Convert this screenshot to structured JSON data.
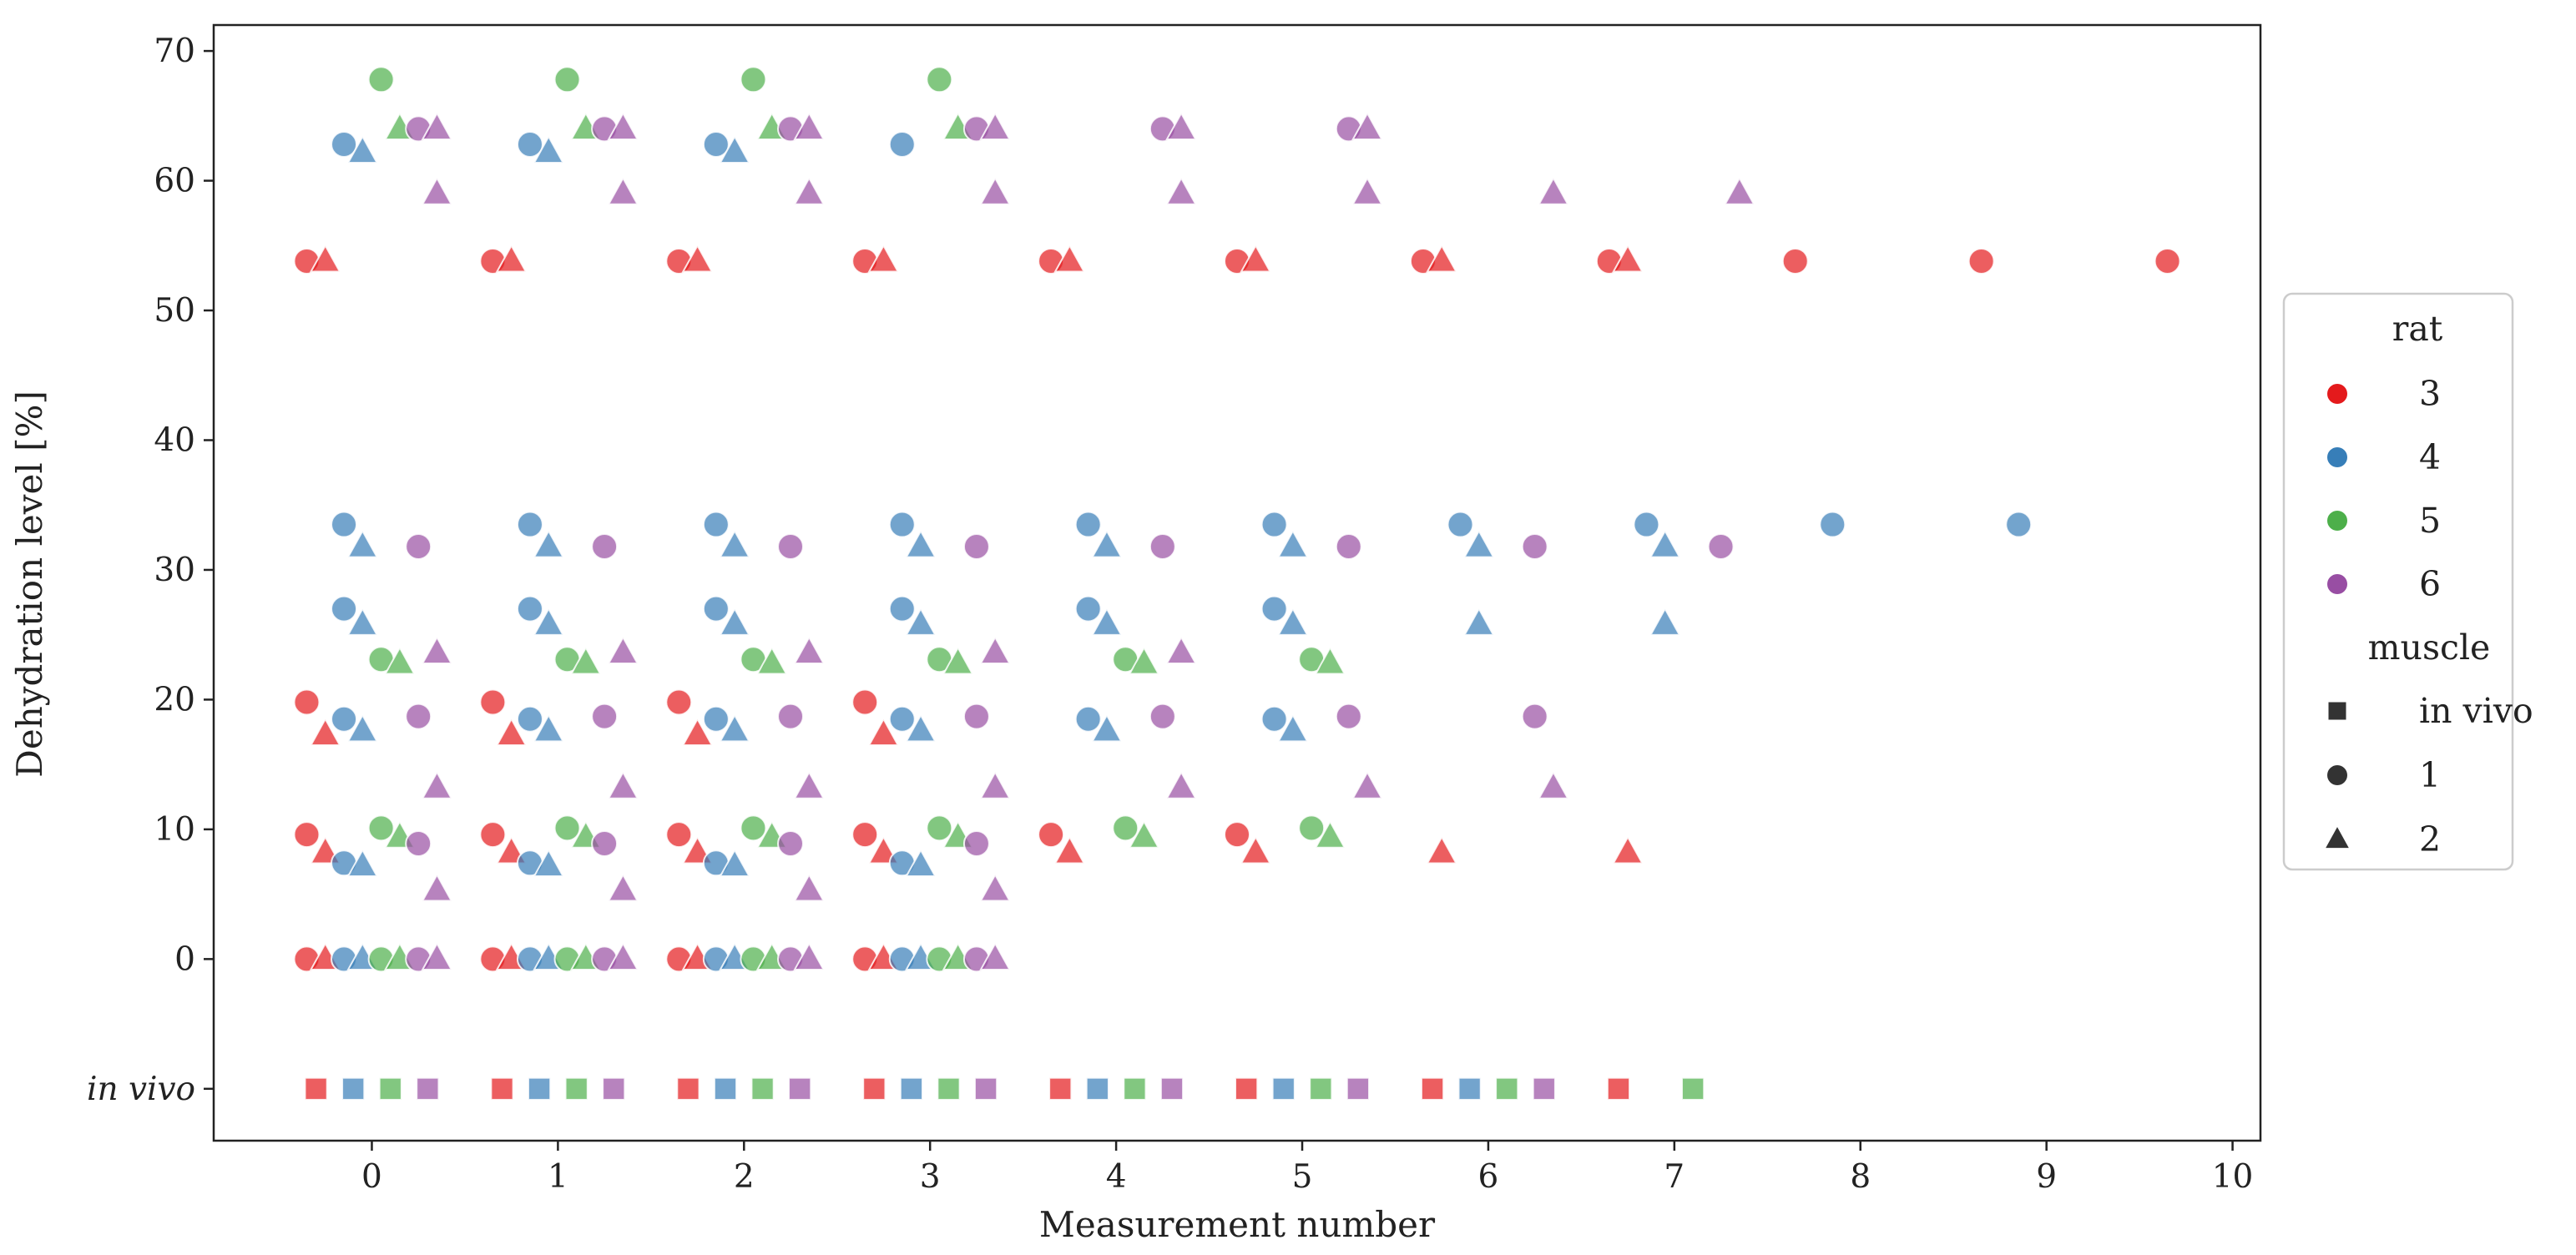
{
  "chart_data": {
    "type": "scatter",
    "xlabel": "Measurement number",
    "ylabel": "Dehydration level [%]",
    "xlim": [
      -0.85,
      10.15
    ],
    "ylim": [
      -14.0,
      72.0
    ],
    "x_ticks": [
      0,
      1,
      2,
      3,
      4,
      5,
      6,
      7,
      8,
      9,
      10
    ],
    "y_ticks": [
      {
        "value": 0,
        "label": "0"
      },
      {
        "value": 10,
        "label": "10"
      },
      {
        "value": 20,
        "label": "20"
      },
      {
        "value": 30,
        "label": "30"
      },
      {
        "value": 40,
        "label": "40"
      },
      {
        "value": 50,
        "label": "50"
      },
      {
        "value": 60,
        "label": "60"
      },
      {
        "value": 70,
        "label": "70"
      },
      {
        "value": -10,
        "label": "in vivo",
        "italic": true
      }
    ],
    "grid": false,
    "legend": {
      "placement": "right",
      "hue_title": "rat",
      "style_title": "muscle",
      "hue_entries": [
        {
          "label": "3",
          "color": "#e41a1c"
        },
        {
          "label": "4",
          "color": "#377eb8"
        },
        {
          "label": "5",
          "color": "#4daf4a"
        },
        {
          "label": "6",
          "color": "#984ea3"
        }
      ],
      "style_entries": [
        {
          "label": "in vivo",
          "marker": "square"
        },
        {
          "label": "1",
          "marker": "circle"
        },
        {
          "label": "2",
          "marker": "triangle"
        }
      ]
    },
    "marker_alpha": 0.7,
    "series": [
      {
        "rat": "3",
        "muscle": "in vivo",
        "color": "#e41a1c",
        "marker": "square",
        "points": [
          [
            -0.3,
            -10
          ],
          [
            0.7,
            -10
          ],
          [
            1.7,
            -10
          ],
          [
            2.7,
            -10
          ],
          [
            3.7,
            -10
          ],
          [
            4.7,
            -10
          ],
          [
            5.7,
            -10
          ],
          [
            6.7,
            -10
          ]
        ]
      },
      {
        "rat": "4",
        "muscle": "in vivo",
        "color": "#377eb8",
        "marker": "square",
        "points": [
          [
            -0.1,
            -10
          ],
          [
            0.9,
            -10
          ],
          [
            1.9,
            -10
          ],
          [
            2.9,
            -10
          ],
          [
            3.9,
            -10
          ],
          [
            4.9,
            -10
          ],
          [
            5.9,
            -10
          ]
        ]
      },
      {
        "rat": "5",
        "muscle": "in vivo",
        "color": "#4daf4a",
        "marker": "square",
        "points": [
          [
            0.1,
            -10
          ],
          [
            1.1,
            -10
          ],
          [
            2.1,
            -10
          ],
          [
            3.1,
            -10
          ],
          [
            4.1,
            -10
          ],
          [
            5.1,
            -10
          ],
          [
            6.1,
            -10
          ],
          [
            7.1,
            -10
          ]
        ]
      },
      {
        "rat": "6",
        "muscle": "in vivo",
        "color": "#984ea3",
        "marker": "square",
        "points": [
          [
            0.3,
            -10
          ],
          [
            1.3,
            -10
          ],
          [
            2.3,
            -10
          ],
          [
            3.3,
            -10
          ],
          [
            4.3,
            -10
          ],
          [
            5.3,
            -10
          ],
          [
            6.3,
            -10
          ]
        ]
      },
      {
        "rat": "3",
        "muscle": "1",
        "color": "#e41a1c",
        "marker": "circle",
        "points": [
          [
            -0.35,
            0
          ],
          [
            0.65,
            0
          ],
          [
            1.65,
            0
          ],
          [
            2.65,
            0
          ],
          [
            -0.35,
            9.6
          ],
          [
            0.65,
            9.6
          ],
          [
            1.65,
            9.6
          ],
          [
            2.65,
            9.6
          ],
          [
            3.65,
            9.6
          ],
          [
            4.65,
            9.6
          ],
          [
            -0.35,
            19.8
          ],
          [
            0.65,
            19.8
          ],
          [
            1.65,
            19.8
          ],
          [
            2.65,
            19.8
          ],
          [
            -0.35,
            53.8
          ],
          [
            0.65,
            53.8
          ],
          [
            1.65,
            53.8
          ],
          [
            2.65,
            53.8
          ],
          [
            3.65,
            53.8
          ],
          [
            4.65,
            53.8
          ],
          [
            5.65,
            53.8
          ],
          [
            6.65,
            53.8
          ],
          [
            7.65,
            53.8
          ],
          [
            8.65,
            53.8
          ],
          [
            9.65,
            53.8
          ]
        ]
      },
      {
        "rat": "3",
        "muscle": "2",
        "color": "#e41a1c",
        "marker": "triangle",
        "points": [
          [
            -0.25,
            0
          ],
          [
            0.75,
            0
          ],
          [
            1.75,
            0
          ],
          [
            2.75,
            0
          ],
          [
            -0.25,
            8.2
          ],
          [
            0.75,
            8.2
          ],
          [
            1.75,
            8.2
          ],
          [
            2.75,
            8.2
          ],
          [
            3.75,
            8.2
          ],
          [
            4.75,
            8.2
          ],
          [
            5.75,
            8.2
          ],
          [
            6.75,
            8.2
          ],
          [
            -0.25,
            17.3
          ],
          [
            0.75,
            17.3
          ],
          [
            1.75,
            17.3
          ],
          [
            2.75,
            17.3
          ],
          [
            -0.25,
            53.8
          ],
          [
            0.75,
            53.8
          ],
          [
            1.75,
            53.8
          ],
          [
            2.75,
            53.8
          ],
          [
            3.75,
            53.8
          ],
          [
            4.75,
            53.8
          ],
          [
            5.75,
            53.8
          ],
          [
            6.75,
            53.8
          ]
        ]
      },
      {
        "rat": "4",
        "muscle": "1",
        "color": "#377eb8",
        "marker": "circle",
        "points": [
          [
            -0.15,
            0
          ],
          [
            0.85,
            0
          ],
          [
            1.85,
            0
          ],
          [
            2.85,
            0
          ],
          [
            -0.15,
            7.4
          ],
          [
            0.85,
            7.4
          ],
          [
            1.85,
            7.4
          ],
          [
            2.85,
            7.4
          ],
          [
            -0.15,
            18.5
          ],
          [
            0.85,
            18.5
          ],
          [
            1.85,
            18.5
          ],
          [
            2.85,
            18.5
          ],
          [
            3.85,
            18.5
          ],
          [
            4.85,
            18.5
          ],
          [
            -0.15,
            27.0
          ],
          [
            0.85,
            27.0
          ],
          [
            1.85,
            27.0
          ],
          [
            2.85,
            27.0
          ],
          [
            3.85,
            27.0
          ],
          [
            4.85,
            27.0
          ],
          [
            -0.15,
            33.5
          ],
          [
            0.85,
            33.5
          ],
          [
            1.85,
            33.5
          ],
          [
            2.85,
            33.5
          ],
          [
            3.85,
            33.5
          ],
          [
            4.85,
            33.5
          ],
          [
            5.85,
            33.5
          ],
          [
            6.85,
            33.5
          ],
          [
            7.85,
            33.5
          ],
          [
            8.85,
            33.5
          ],
          [
            -0.15,
            62.8
          ],
          [
            0.85,
            62.8
          ],
          [
            1.85,
            62.8
          ],
          [
            2.85,
            62.8
          ]
        ]
      },
      {
        "rat": "4",
        "muscle": "2",
        "color": "#377eb8",
        "marker": "triangle",
        "points": [
          [
            -0.05,
            0
          ],
          [
            0.95,
            0
          ],
          [
            1.95,
            0
          ],
          [
            2.95,
            0
          ],
          [
            -0.05,
            7.2
          ],
          [
            0.95,
            7.2
          ],
          [
            1.95,
            7.2
          ],
          [
            2.95,
            7.2
          ],
          [
            -0.05,
            17.6
          ],
          [
            0.95,
            17.6
          ],
          [
            1.95,
            17.6
          ],
          [
            2.95,
            17.6
          ],
          [
            3.95,
            17.6
          ],
          [
            4.95,
            17.6
          ],
          [
            -0.05,
            25.8
          ],
          [
            0.95,
            25.8
          ],
          [
            1.95,
            25.8
          ],
          [
            2.95,
            25.8
          ],
          [
            3.95,
            25.8
          ],
          [
            4.95,
            25.8
          ],
          [
            5.95,
            25.8
          ],
          [
            6.95,
            25.8
          ],
          [
            -0.05,
            31.8
          ],
          [
            0.95,
            31.8
          ],
          [
            1.95,
            31.8
          ],
          [
            2.95,
            31.8
          ],
          [
            3.95,
            31.8
          ],
          [
            4.95,
            31.8
          ],
          [
            5.95,
            31.8
          ],
          [
            6.95,
            31.8
          ],
          [
            -0.05,
            62.2
          ],
          [
            0.95,
            62.2
          ],
          [
            1.95,
            62.2
          ]
        ]
      },
      {
        "rat": "5",
        "muscle": "1",
        "color": "#4daf4a",
        "marker": "circle",
        "points": [
          [
            0.05,
            0
          ],
          [
            1.05,
            0
          ],
          [
            2.05,
            0
          ],
          [
            3.05,
            0
          ],
          [
            0.05,
            10.1
          ],
          [
            1.05,
            10.1
          ],
          [
            2.05,
            10.1
          ],
          [
            3.05,
            10.1
          ],
          [
            4.05,
            10.1
          ],
          [
            5.05,
            10.1
          ],
          [
            0.05,
            23.1
          ],
          [
            1.05,
            23.1
          ],
          [
            2.05,
            23.1
          ],
          [
            3.05,
            23.1
          ],
          [
            4.05,
            23.1
          ],
          [
            5.05,
            23.1
          ],
          [
            0.05,
            67.8
          ],
          [
            1.05,
            67.8
          ],
          [
            2.05,
            67.8
          ],
          [
            3.05,
            67.8
          ]
        ]
      },
      {
        "rat": "5",
        "muscle": "2",
        "color": "#4daf4a",
        "marker": "triangle",
        "points": [
          [
            0.15,
            0
          ],
          [
            1.15,
            0
          ],
          [
            2.15,
            0
          ],
          [
            3.15,
            0
          ],
          [
            0.15,
            9.4
          ],
          [
            1.15,
            9.4
          ],
          [
            2.15,
            9.4
          ],
          [
            3.15,
            9.4
          ],
          [
            4.15,
            9.4
          ],
          [
            5.15,
            9.4
          ],
          [
            0.15,
            22.8
          ],
          [
            1.15,
            22.8
          ],
          [
            2.15,
            22.8
          ],
          [
            3.15,
            22.8
          ],
          [
            4.15,
            22.8
          ],
          [
            5.15,
            22.8
          ],
          [
            0.15,
            64.0
          ],
          [
            1.15,
            64.0
          ],
          [
            2.15,
            64.0
          ],
          [
            3.15,
            64.0
          ]
        ]
      },
      {
        "rat": "6",
        "muscle": "1",
        "color": "#984ea3",
        "marker": "circle",
        "points": [
          [
            0.25,
            0
          ],
          [
            1.25,
            0
          ],
          [
            2.25,
            0
          ],
          [
            3.25,
            0
          ],
          [
            0.25,
            8.9
          ],
          [
            1.25,
            8.9
          ],
          [
            2.25,
            8.9
          ],
          [
            3.25,
            8.9
          ],
          [
            0.25,
            18.7
          ],
          [
            1.25,
            18.7
          ],
          [
            2.25,
            18.7
          ],
          [
            3.25,
            18.7
          ],
          [
            4.25,
            18.7
          ],
          [
            5.25,
            18.7
          ],
          [
            6.25,
            18.7
          ],
          [
            0.25,
            31.8
          ],
          [
            1.25,
            31.8
          ],
          [
            2.25,
            31.8
          ],
          [
            3.25,
            31.8
          ],
          [
            4.25,
            31.8
          ],
          [
            5.25,
            31.8
          ],
          [
            6.25,
            31.8
          ],
          [
            7.25,
            31.8
          ],
          [
            0.25,
            64.0
          ],
          [
            1.25,
            64.0
          ],
          [
            2.25,
            64.0
          ],
          [
            3.25,
            64.0
          ],
          [
            4.25,
            64.0
          ],
          [
            5.25,
            64.0
          ]
        ]
      },
      {
        "rat": "6",
        "muscle": "2",
        "color": "#984ea3",
        "marker": "triangle",
        "points": [
          [
            0.35,
            0
          ],
          [
            1.35,
            0
          ],
          [
            2.35,
            0
          ],
          [
            3.35,
            0
          ],
          [
            0.35,
            5.3
          ],
          [
            1.35,
            5.3
          ],
          [
            2.35,
            5.3
          ],
          [
            3.35,
            5.3
          ],
          [
            0.35,
            13.2
          ],
          [
            1.35,
            13.2
          ],
          [
            2.35,
            13.2
          ],
          [
            3.35,
            13.2
          ],
          [
            4.35,
            13.2
          ],
          [
            5.35,
            13.2
          ],
          [
            6.35,
            13.2
          ],
          [
            0.35,
            23.6
          ],
          [
            1.35,
            23.6
          ],
          [
            2.35,
            23.6
          ],
          [
            3.35,
            23.6
          ],
          [
            4.35,
            23.6
          ],
          [
            0.35,
            59.0
          ],
          [
            1.35,
            59.0
          ],
          [
            2.35,
            59.0
          ],
          [
            3.35,
            59.0
          ],
          [
            4.35,
            59.0
          ],
          [
            5.35,
            59.0
          ],
          [
            6.35,
            59.0
          ],
          [
            7.35,
            59.0
          ],
          [
            0.35,
            64.0
          ],
          [
            1.35,
            64.0
          ],
          [
            2.35,
            64.0
          ],
          [
            3.35,
            64.0
          ],
          [
            4.35,
            64.0
          ],
          [
            5.35,
            64.0
          ]
        ]
      }
    ]
  }
}
